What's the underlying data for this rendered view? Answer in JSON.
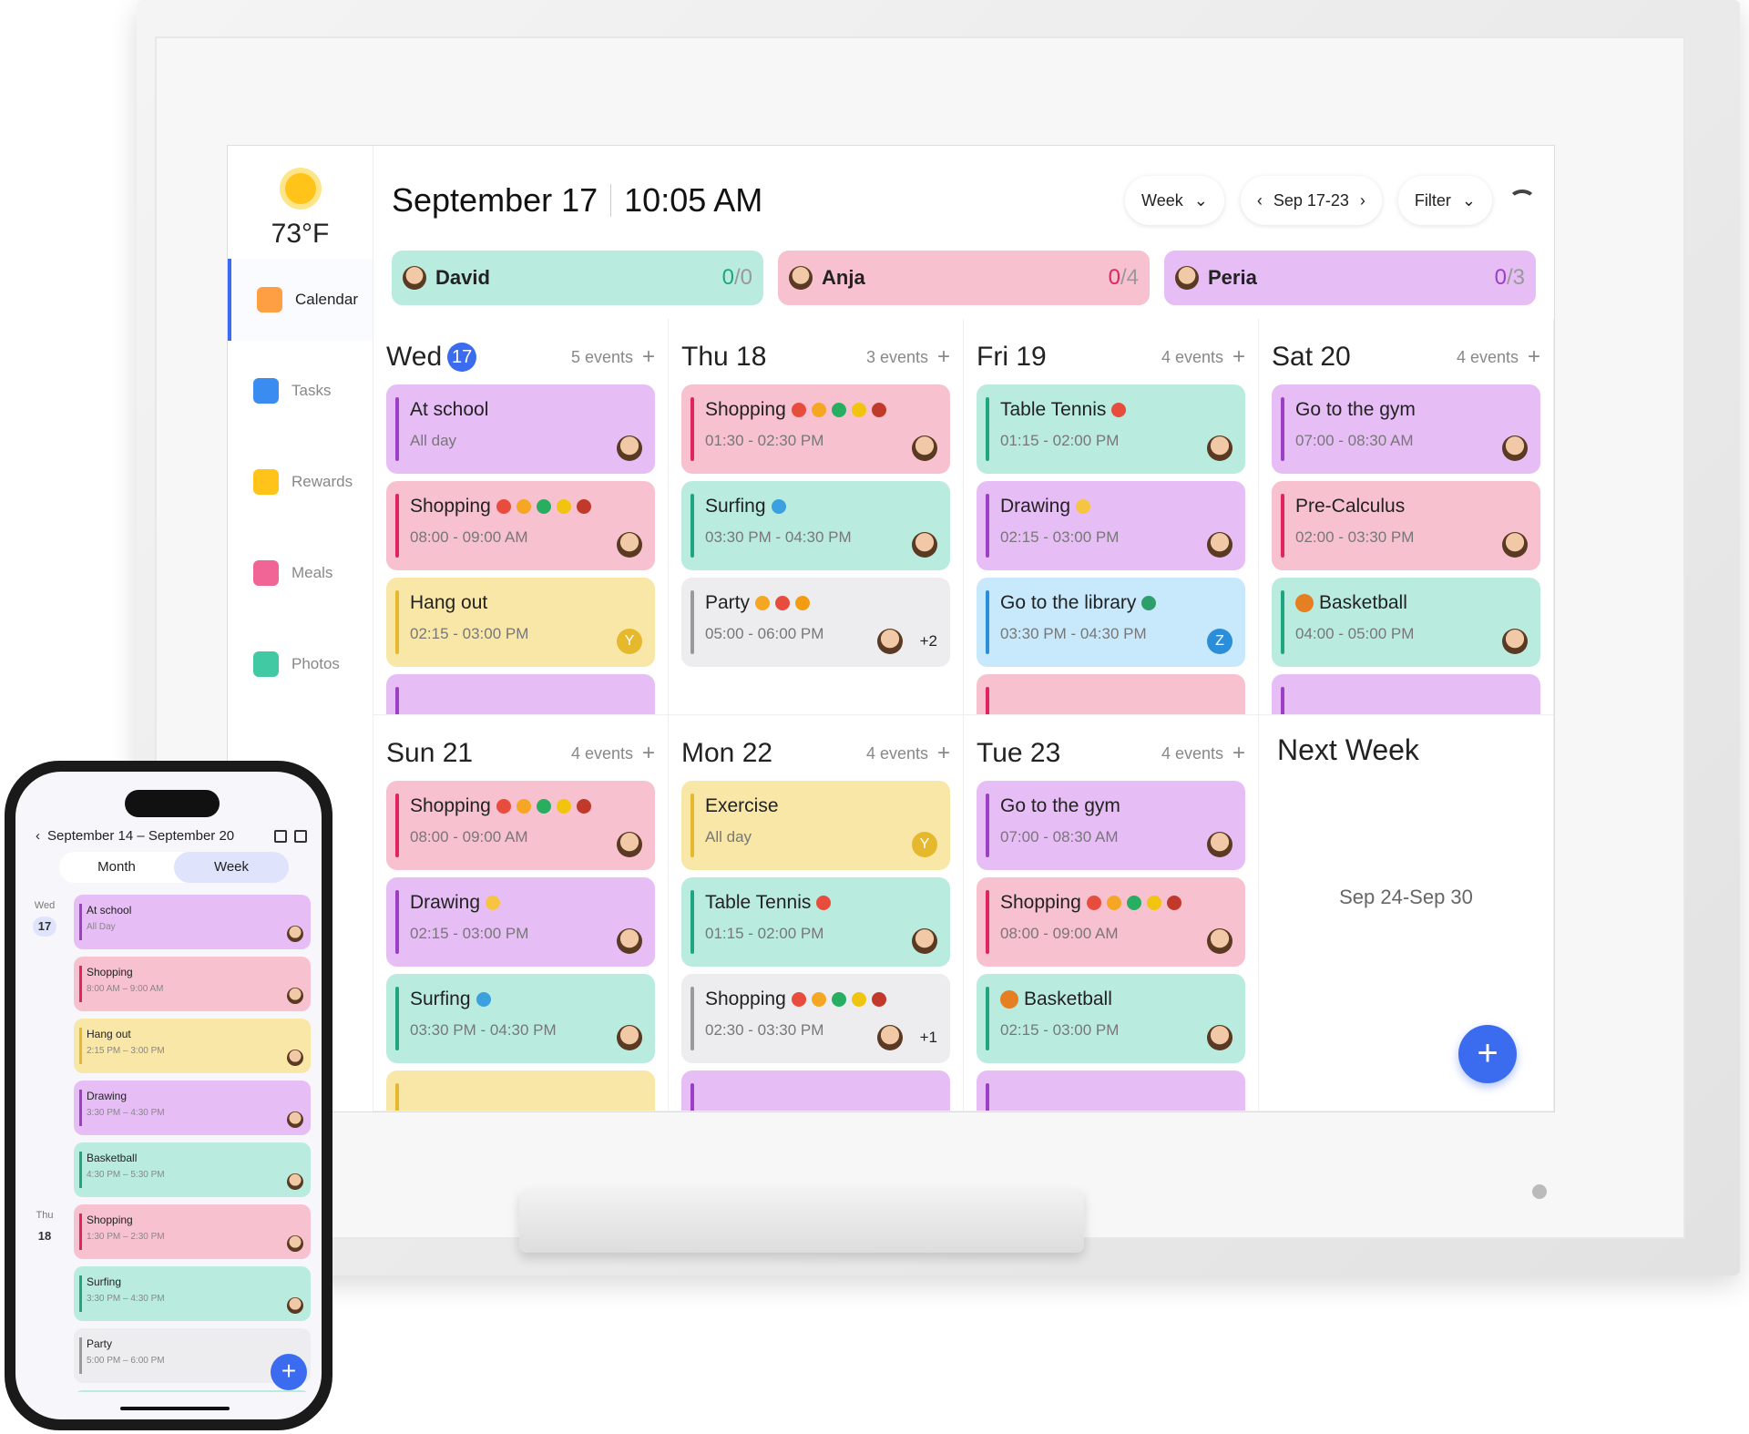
{
  "colors": {
    "accent": "#3b6cf0",
    "purple": {
      "bg": "#e7bdf6",
      "bar": "#9b3fc4"
    },
    "pink": {
      "bg": "#f7c1d0",
      "bar": "#e0245e"
    },
    "yellow": {
      "bg": "#f9e7a8",
      "bar": "#e5b82e"
    },
    "teal": {
      "bg": "#b9ecdf",
      "bar": "#1fa57f"
    },
    "gray": {
      "bg": "#ededf0",
      "bar": "#9a9a9a"
    },
    "blue": {
      "bg": "#c8e8fb",
      "bar": "#2a8fd8"
    }
  },
  "sidebar": {
    "weather": {
      "icon": "sun-icon",
      "temp": "73°F"
    },
    "items": [
      {
        "label": "Calendar",
        "icon": "calendar-icon",
        "color": "#ff9f43",
        "active": true
      },
      {
        "label": "Tasks",
        "icon": "checkbox-icon",
        "color": "#3b8cf0"
      },
      {
        "label": "Rewards",
        "icon": "star-icon",
        "color": "#ffc31a"
      },
      {
        "label": "Meals",
        "icon": "fork-knife-icon",
        "color": "#f06595"
      },
      {
        "label": "Photos",
        "icon": "photo-icon",
        "color": "#40c9a2"
      }
    ]
  },
  "header": {
    "date": "September 17",
    "time": "10:05 AM",
    "view": "Week",
    "range": "Sep 17-23",
    "filter": "Filter"
  },
  "persons": [
    {
      "name": "David",
      "done": "0",
      "total": "/0",
      "color": "teal",
      "count_color": "#1fa57f"
    },
    {
      "name": "Anja",
      "done": "0",
      "total": "/4",
      "color": "pink",
      "count_color": "#e0245e"
    },
    {
      "name": "Peria",
      "done": "0",
      "total": "/3",
      "color": "purple",
      "count_color": "#9b3fc4"
    }
  ],
  "days": [
    {
      "label": "Wed",
      "num": "17",
      "today": true,
      "count": "5 events",
      "events": [
        {
          "title": "At school",
          "sub": "All day",
          "color": "purple",
          "who": "avatar"
        },
        {
          "title": "Shopping",
          "emoji": [
            "cart",
            "cake",
            "leaf",
            "corn",
            "meat"
          ],
          "sub": "08:00 - 09:00 AM",
          "color": "pink",
          "who": "avatar"
        },
        {
          "title": "Hang out",
          "sub": "02:15 - 03:00 PM",
          "color": "yellow",
          "badge": "Y",
          "badge_color": "#e5b82e"
        },
        {
          "title": "",
          "sub": "",
          "color": "purple"
        }
      ]
    },
    {
      "label": "Thu 18",
      "count": "3 events",
      "events": [
        {
          "title": "Shopping",
          "emoji": [
            "cart",
            "cake",
            "leaf",
            "corn",
            "meat"
          ],
          "sub": "01:30 - 02:30 PM",
          "color": "pink",
          "who": "avatar"
        },
        {
          "title": "Surfing",
          "emoji": [
            "surf"
          ],
          "sub": "03:30 PM - 04:30 PM",
          "color": "teal",
          "who": "avatar"
        },
        {
          "title": "Party",
          "emoji": [
            "confetti",
            "balloon",
            "hat"
          ],
          "sub": "05:00 - 06:00 PM",
          "color": "gray",
          "who": "avatar",
          "more": "+2"
        }
      ]
    },
    {
      "label": "Fri 19",
      "count": "4 events",
      "events": [
        {
          "title": "Table Tennis",
          "emoji": [
            "ping-pong"
          ],
          "sub": "01:15 - 02:00 PM",
          "color": "teal",
          "who": "avatar"
        },
        {
          "title": "Drawing",
          "emoji": [
            "pencil"
          ],
          "sub": "02:15 - 03:00 PM",
          "color": "purple",
          "who": "avatar"
        },
        {
          "title": "Go to the library",
          "emoji": [
            "books"
          ],
          "sub": "03:30 PM - 04:30 PM",
          "color": "blue",
          "badge": "Z",
          "badge_color": "#2a8fd8"
        },
        {
          "title": "",
          "sub": "",
          "color": "pink"
        }
      ]
    },
    {
      "label": "Sat 20",
      "count": "4 events",
      "events": [
        {
          "title": "Go to the gym",
          "sub": "07:00 - 08:30 AM",
          "color": "purple",
          "who": "avatar"
        },
        {
          "title": "Pre-Calculus",
          "sub": "02:00 - 03:30 PM",
          "color": "pink",
          "who": "avatar"
        },
        {
          "title": "Basketball",
          "lead": "basketball",
          "sub": "04:00 - 05:00 PM",
          "color": "teal",
          "who": "avatar"
        },
        {
          "title": "",
          "sub": "",
          "color": "purple"
        }
      ]
    },
    {
      "label": "Sun 21",
      "count": "4 events",
      "events": [
        {
          "title": "Shopping",
          "emoji": [
            "cart",
            "cake",
            "leaf",
            "corn",
            "meat"
          ],
          "sub": "08:00 - 09:00 AM",
          "color": "pink",
          "who": "avatar"
        },
        {
          "title": "Drawing",
          "emoji": [
            "pencil"
          ],
          "sub": "02:15 - 03:00 PM",
          "color": "purple",
          "who": "avatar"
        },
        {
          "title": "Surfing",
          "emoji": [
            "surf"
          ],
          "sub": "03:30 PM - 04:30 PM",
          "color": "teal",
          "who": "avatar"
        },
        {
          "title": "",
          "sub": "",
          "color": "yellow"
        }
      ]
    },
    {
      "label": "Mon 22",
      "count": "4 events",
      "events": [
        {
          "title": "Exercise",
          "sub": "All day",
          "color": "yellow",
          "badge": "Y",
          "badge_color": "#e5b82e"
        },
        {
          "title": "Table Tennis",
          "emoji": [
            "ping-pong"
          ],
          "sub": "01:15 - 02:00 PM",
          "color": "teal",
          "who": "avatar"
        },
        {
          "title": "Shopping",
          "emoji": [
            "cart",
            "cake",
            "leaf",
            "corn",
            "meat"
          ],
          "sub": "02:30 - 03:30 PM",
          "color": "gray",
          "who": "avatar",
          "more": "+1"
        },
        {
          "title": "",
          "sub": "",
          "color": "purple"
        }
      ]
    },
    {
      "label": "Tue 23",
      "count": "4 events",
      "events": [
        {
          "title": "Go to the gym",
          "sub": "07:00 - 08:30 AM",
          "color": "purple",
          "who": "avatar"
        },
        {
          "title": "Shopping",
          "emoji": [
            "cart",
            "cake",
            "leaf",
            "corn",
            "meat"
          ],
          "sub": "08:00 - 09:00 AM",
          "color": "pink",
          "who": "avatar"
        },
        {
          "title": "Basketball",
          "lead": "basketball",
          "sub": "02:15 - 03:00 PM",
          "color": "teal",
          "who": "avatar"
        },
        {
          "title": "",
          "sub": "",
          "color": "purple"
        }
      ]
    }
  ],
  "next_week": {
    "title": "Next Week",
    "range": "Sep 24-Sep 30",
    "fab": "+"
  },
  "phone": {
    "title": "September 14 – September 20",
    "tabs": [
      "Month",
      "Week"
    ],
    "active_tab": "Week",
    "fab": "+",
    "rows": [
      {
        "dow": "Wed",
        "num": "17",
        "title": "At school",
        "sub": "All Day",
        "color": "purple"
      },
      {
        "title": "Shopping",
        "sub": "8:00 AM – 9:00 AM",
        "color": "pink"
      },
      {
        "title": "Hang out",
        "sub": "2:15 PM – 3:00 PM",
        "color": "yellow"
      },
      {
        "title": "Drawing",
        "sub": "3:30 PM – 4:30 PM",
        "color": "purple"
      },
      {
        "title": "Basketball",
        "sub": "4:30 PM – 5:30 PM",
        "color": "teal"
      },
      {
        "dow": "Thu",
        "num": "18",
        "title": "Shopping",
        "sub": "1:30 PM – 2:30 PM",
        "color": "pink"
      },
      {
        "title": "Surfing",
        "sub": "3:30 PM – 4:30 PM",
        "color": "teal"
      },
      {
        "title": "Party",
        "sub": "5:00 PM – 6:00 PM",
        "color": "gray"
      },
      {
        "title": "",
        "sub": "",
        "color": "teal"
      }
    ]
  }
}
